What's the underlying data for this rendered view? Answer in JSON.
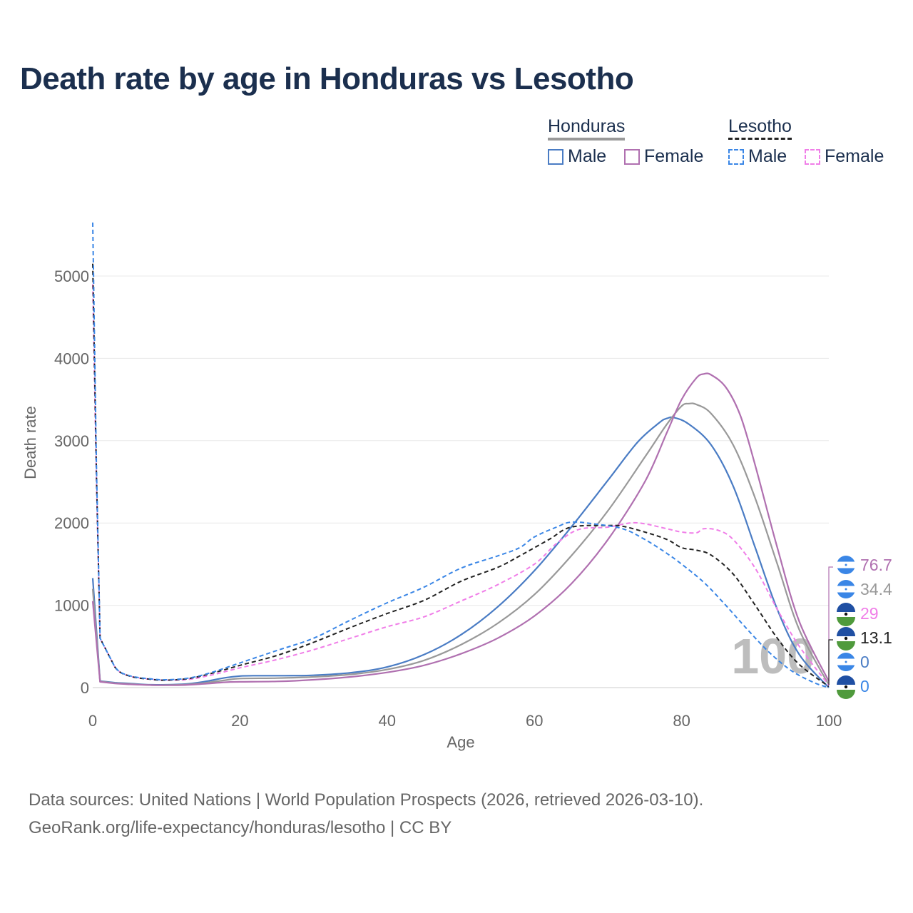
{
  "title": "Death rate by age in Honduras vs Lesotho",
  "legend": {
    "groups": [
      {
        "name": "Honduras",
        "line_color": "#999999",
        "dashed": false
      },
      {
        "name": "Lesotho",
        "line_color": "#222222",
        "dashed": true
      }
    ],
    "items": [
      {
        "label": "Male",
        "color": "#4a7cc4",
        "dashed": false
      },
      {
        "label": "Female",
        "color": "#b070b0",
        "dashed": false
      },
      {
        "label": "Male",
        "color": "#3a86e6",
        "dashed": true
      },
      {
        "label": "Female",
        "color": "#f07ee8",
        "dashed": true
      }
    ]
  },
  "watermark": "100",
  "footer": {
    "line1": "Data sources: United Nations | World Population Prospects (2026, retrieved 2026-03-10).",
    "line2": "GeoRank.org/life-expectancy/honduras/lesotho | CC BY"
  },
  "end_labels": [
    {
      "text": "76.7",
      "color": "#b070b0",
      "flag": "honduras"
    },
    {
      "text": "34.4",
      "color": "#999999",
      "flag": "honduras"
    },
    {
      "text": "29",
      "color": "#f07ee8",
      "flag": "lesotho"
    },
    {
      "text": "13.1",
      "color": "#222222",
      "flag": "lesotho"
    },
    {
      "text": "0",
      "color": "#4a7cc4",
      "flag": "honduras"
    },
    {
      "text": "0",
      "color": "#3a86e6",
      "flag": "lesotho"
    }
  ],
  "chart_data": {
    "type": "line",
    "title": "Death rate by age in Honduras vs Lesotho",
    "xlabel": "Age",
    "ylabel": "Death rate",
    "xlim": [
      0,
      100
    ],
    "ylim": [
      0,
      5000
    ],
    "xticks": [
      0,
      20,
      40,
      60,
      80,
      100
    ],
    "yticks": [
      0,
      1000,
      2000,
      3000,
      4000,
      5000
    ],
    "grid": true,
    "series": [
      {
        "name": "Honduras Male",
        "color": "#4a7cc4",
        "dashed": false,
        "width": 2.2,
        "points": [
          [
            0,
            1330
          ],
          [
            1,
            80
          ],
          [
            3,
            60
          ],
          [
            5,
            50
          ],
          [
            8,
            35
          ],
          [
            12,
            40
          ],
          [
            15,
            70
          ],
          [
            18,
            120
          ],
          [
            20,
            140
          ],
          [
            22,
            145
          ],
          [
            26,
            145
          ],
          [
            30,
            150
          ],
          [
            35,
            180
          ],
          [
            40,
            250
          ],
          [
            45,
            400
          ],
          [
            50,
            640
          ],
          [
            55,
            980
          ],
          [
            60,
            1420
          ],
          [
            65,
            1950
          ],
          [
            70,
            2520
          ],
          [
            74,
            2980
          ],
          [
            77,
            3220
          ],
          [
            78,
            3270
          ],
          [
            79,
            3280
          ],
          [
            81,
            3200
          ],
          [
            84,
            2950
          ],
          [
            87,
            2450
          ],
          [
            90,
            1700
          ],
          [
            93,
            950
          ],
          [
            96,
            400
          ],
          [
            100,
            0
          ]
        ]
      },
      {
        "name": "Honduras (total)",
        "color": "#999999",
        "dashed": false,
        "width": 2.2,
        "points": [
          [
            0,
            1200
          ],
          [
            1,
            75
          ],
          [
            3,
            55
          ],
          [
            5,
            45
          ],
          [
            8,
            30
          ],
          [
            12,
            35
          ],
          [
            15,
            55
          ],
          [
            18,
            90
          ],
          [
            20,
            110
          ],
          [
            25,
            115
          ],
          [
            30,
            130
          ],
          [
            35,
            160
          ],
          [
            40,
            220
          ],
          [
            45,
            330
          ],
          [
            50,
            520
          ],
          [
            55,
            780
          ],
          [
            60,
            1130
          ],
          [
            65,
            1600
          ],
          [
            70,
            2150
          ],
          [
            75,
            2800
          ],
          [
            78,
            3200
          ],
          [
            80,
            3420
          ],
          [
            81,
            3450
          ],
          [
            82,
            3440
          ],
          [
            84,
            3330
          ],
          [
            87,
            2950
          ],
          [
            90,
            2300
          ],
          [
            93,
            1500
          ],
          [
            96,
            700
          ],
          [
            100,
            34
          ]
        ]
      },
      {
        "name": "Honduras Female",
        "color": "#b070b0",
        "dashed": false,
        "width": 2.2,
        "points": [
          [
            0,
            1050
          ],
          [
            1,
            70
          ],
          [
            3,
            50
          ],
          [
            5,
            40
          ],
          [
            8,
            30
          ],
          [
            12,
            30
          ],
          [
            15,
            45
          ],
          [
            18,
            65
          ],
          [
            20,
            70
          ],
          [
            25,
            75
          ],
          [
            30,
            95
          ],
          [
            35,
            130
          ],
          [
            40,
            185
          ],
          [
            45,
            270
          ],
          [
            50,
            410
          ],
          [
            55,
            600
          ],
          [
            60,
            870
          ],
          [
            65,
            1260
          ],
          [
            70,
            1800
          ],
          [
            75,
            2500
          ],
          [
            78,
            3100
          ],
          [
            80,
            3500
          ],
          [
            82,
            3760
          ],
          [
            83,
            3810
          ],
          [
            84,
            3800
          ],
          [
            86,
            3650
          ],
          [
            88,
            3300
          ],
          [
            90,
            2700
          ],
          [
            93,
            1700
          ],
          [
            96,
            800
          ],
          [
            100,
            77
          ]
        ]
      },
      {
        "name": "Lesotho Female",
        "color": "#f07ee8",
        "dashed": true,
        "width": 2,
        "points": [
          [
            0,
            4900
          ],
          [
            0.5,
            2500
          ],
          [
            1,
            600
          ],
          [
            3,
            250
          ],
          [
            5,
            140
          ],
          [
            8,
            100
          ],
          [
            10,
            90
          ],
          [
            13,
            100
          ],
          [
            16,
            150
          ],
          [
            20,
            240
          ],
          [
            25,
            340
          ],
          [
            30,
            460
          ],
          [
            35,
            600
          ],
          [
            40,
            740
          ],
          [
            45,
            860
          ],
          [
            50,
            1050
          ],
          [
            55,
            1250
          ],
          [
            60,
            1500
          ],
          [
            63,
            1750
          ],
          [
            66,
            1920
          ],
          [
            70,
            1950
          ],
          [
            73,
            2000
          ],
          [
            75,
            1990
          ],
          [
            78,
            1930
          ],
          [
            80,
            1890
          ],
          [
            82,
            1880
          ],
          [
            83,
            1930
          ],
          [
            85,
            1910
          ],
          [
            87,
            1800
          ],
          [
            90,
            1450
          ],
          [
            93,
            950
          ],
          [
            96,
            500
          ],
          [
            100,
            29
          ]
        ]
      },
      {
        "name": "Lesotho (total)",
        "color": "#222222",
        "dashed": true,
        "width": 2,
        "points": [
          [
            0,
            5150
          ],
          [
            0.5,
            2600
          ],
          [
            1,
            600
          ],
          [
            3,
            250
          ],
          [
            5,
            140
          ],
          [
            8,
            100
          ],
          [
            10,
            90
          ],
          [
            13,
            110
          ],
          [
            16,
            170
          ],
          [
            20,
            270
          ],
          [
            25,
            390
          ],
          [
            30,
            550
          ],
          [
            35,
            730
          ],
          [
            40,
            900
          ],
          [
            45,
            1060
          ],
          [
            50,
            1290
          ],
          [
            55,
            1460
          ],
          [
            58,
            1600
          ],
          [
            62,
            1800
          ],
          [
            65,
            1950
          ],
          [
            70,
            1970
          ],
          [
            72,
            1960
          ],
          [
            75,
            1890
          ],
          [
            78,
            1800
          ],
          [
            80,
            1700
          ],
          [
            82,
            1670
          ],
          [
            84,
            1610
          ],
          [
            87,
            1380
          ],
          [
            90,
            1000
          ],
          [
            93,
            600
          ],
          [
            96,
            280
          ],
          [
            100,
            13
          ]
        ]
      },
      {
        "name": "Lesotho Male",
        "color": "#3a86e6",
        "dashed": true,
        "width": 2,
        "points": [
          [
            0,
            5650
          ],
          [
            0.5,
            2700
          ],
          [
            1,
            600
          ],
          [
            3,
            250
          ],
          [
            5,
            145
          ],
          [
            8,
            105
          ],
          [
            10,
            95
          ],
          [
            13,
            115
          ],
          [
            16,
            180
          ],
          [
            20,
            300
          ],
          [
            25,
            450
          ],
          [
            30,
            600
          ],
          [
            35,
            820
          ],
          [
            40,
            1030
          ],
          [
            45,
            1220
          ],
          [
            50,
            1450
          ],
          [
            55,
            1600
          ],
          [
            58,
            1700
          ],
          [
            60,
            1830
          ],
          [
            63,
            1950
          ],
          [
            65,
            2010
          ],
          [
            68,
            1990
          ],
          [
            72,
            1930
          ],
          [
            75,
            1800
          ],
          [
            78,
            1630
          ],
          [
            80,
            1500
          ],
          [
            83,
            1280
          ],
          [
            86,
            1000
          ],
          [
            89,
            700
          ],
          [
            92,
            420
          ],
          [
            95,
            200
          ],
          [
            98,
            60
          ],
          [
            100,
            0
          ]
        ]
      }
    ]
  }
}
